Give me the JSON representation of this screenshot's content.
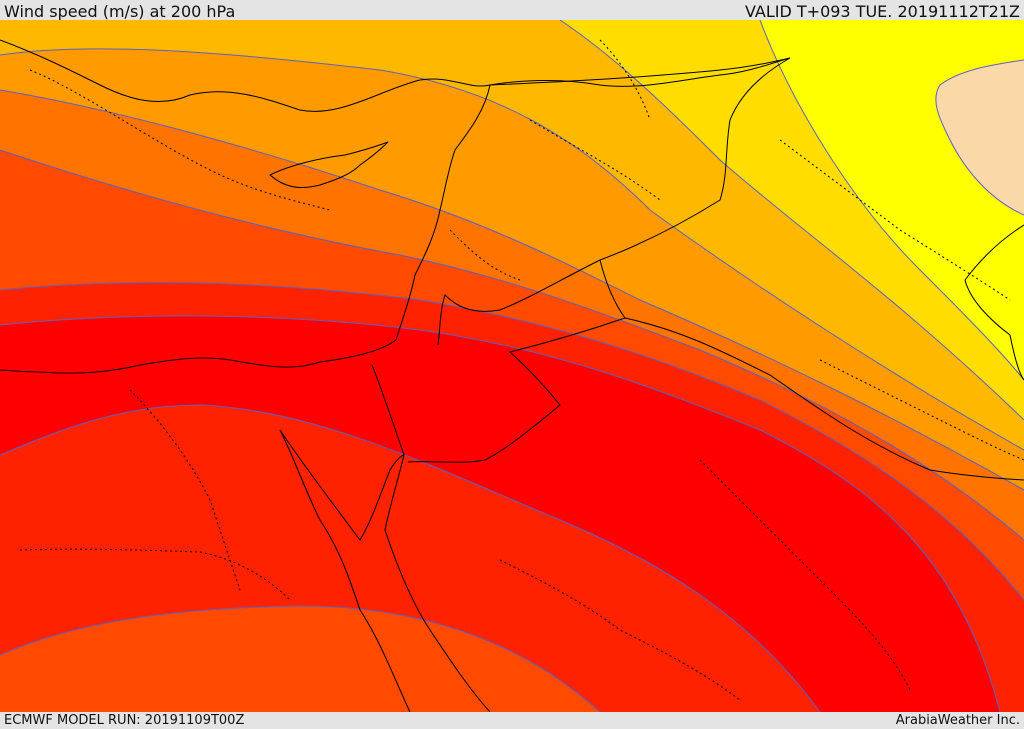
{
  "header": {
    "title": "Wind speed (m/s) at 200 hPa",
    "valid": "VALID T+093 TUE. 20191112T21Z"
  },
  "footer": {
    "model_run": "ECMWF MODEL RUN: 20191109T00Z",
    "credit": "ArabiaWeather Inc."
  },
  "map": {
    "field": "wind speed at 200 hPa",
    "units": "m/s",
    "colors": {
      "lowest": "#fbd8a8",
      "low": "#ffff00",
      "mid_low": "#ffdd00",
      "mid": "#ffb800",
      "mid_high": "#ff9a00",
      "high": "#ff7300",
      "higher": "#ff4a00",
      "very_high": "#ff2200",
      "core": "#ff0000",
      "contour_line": "#6060c0",
      "border_line": "#000000"
    }
  }
}
